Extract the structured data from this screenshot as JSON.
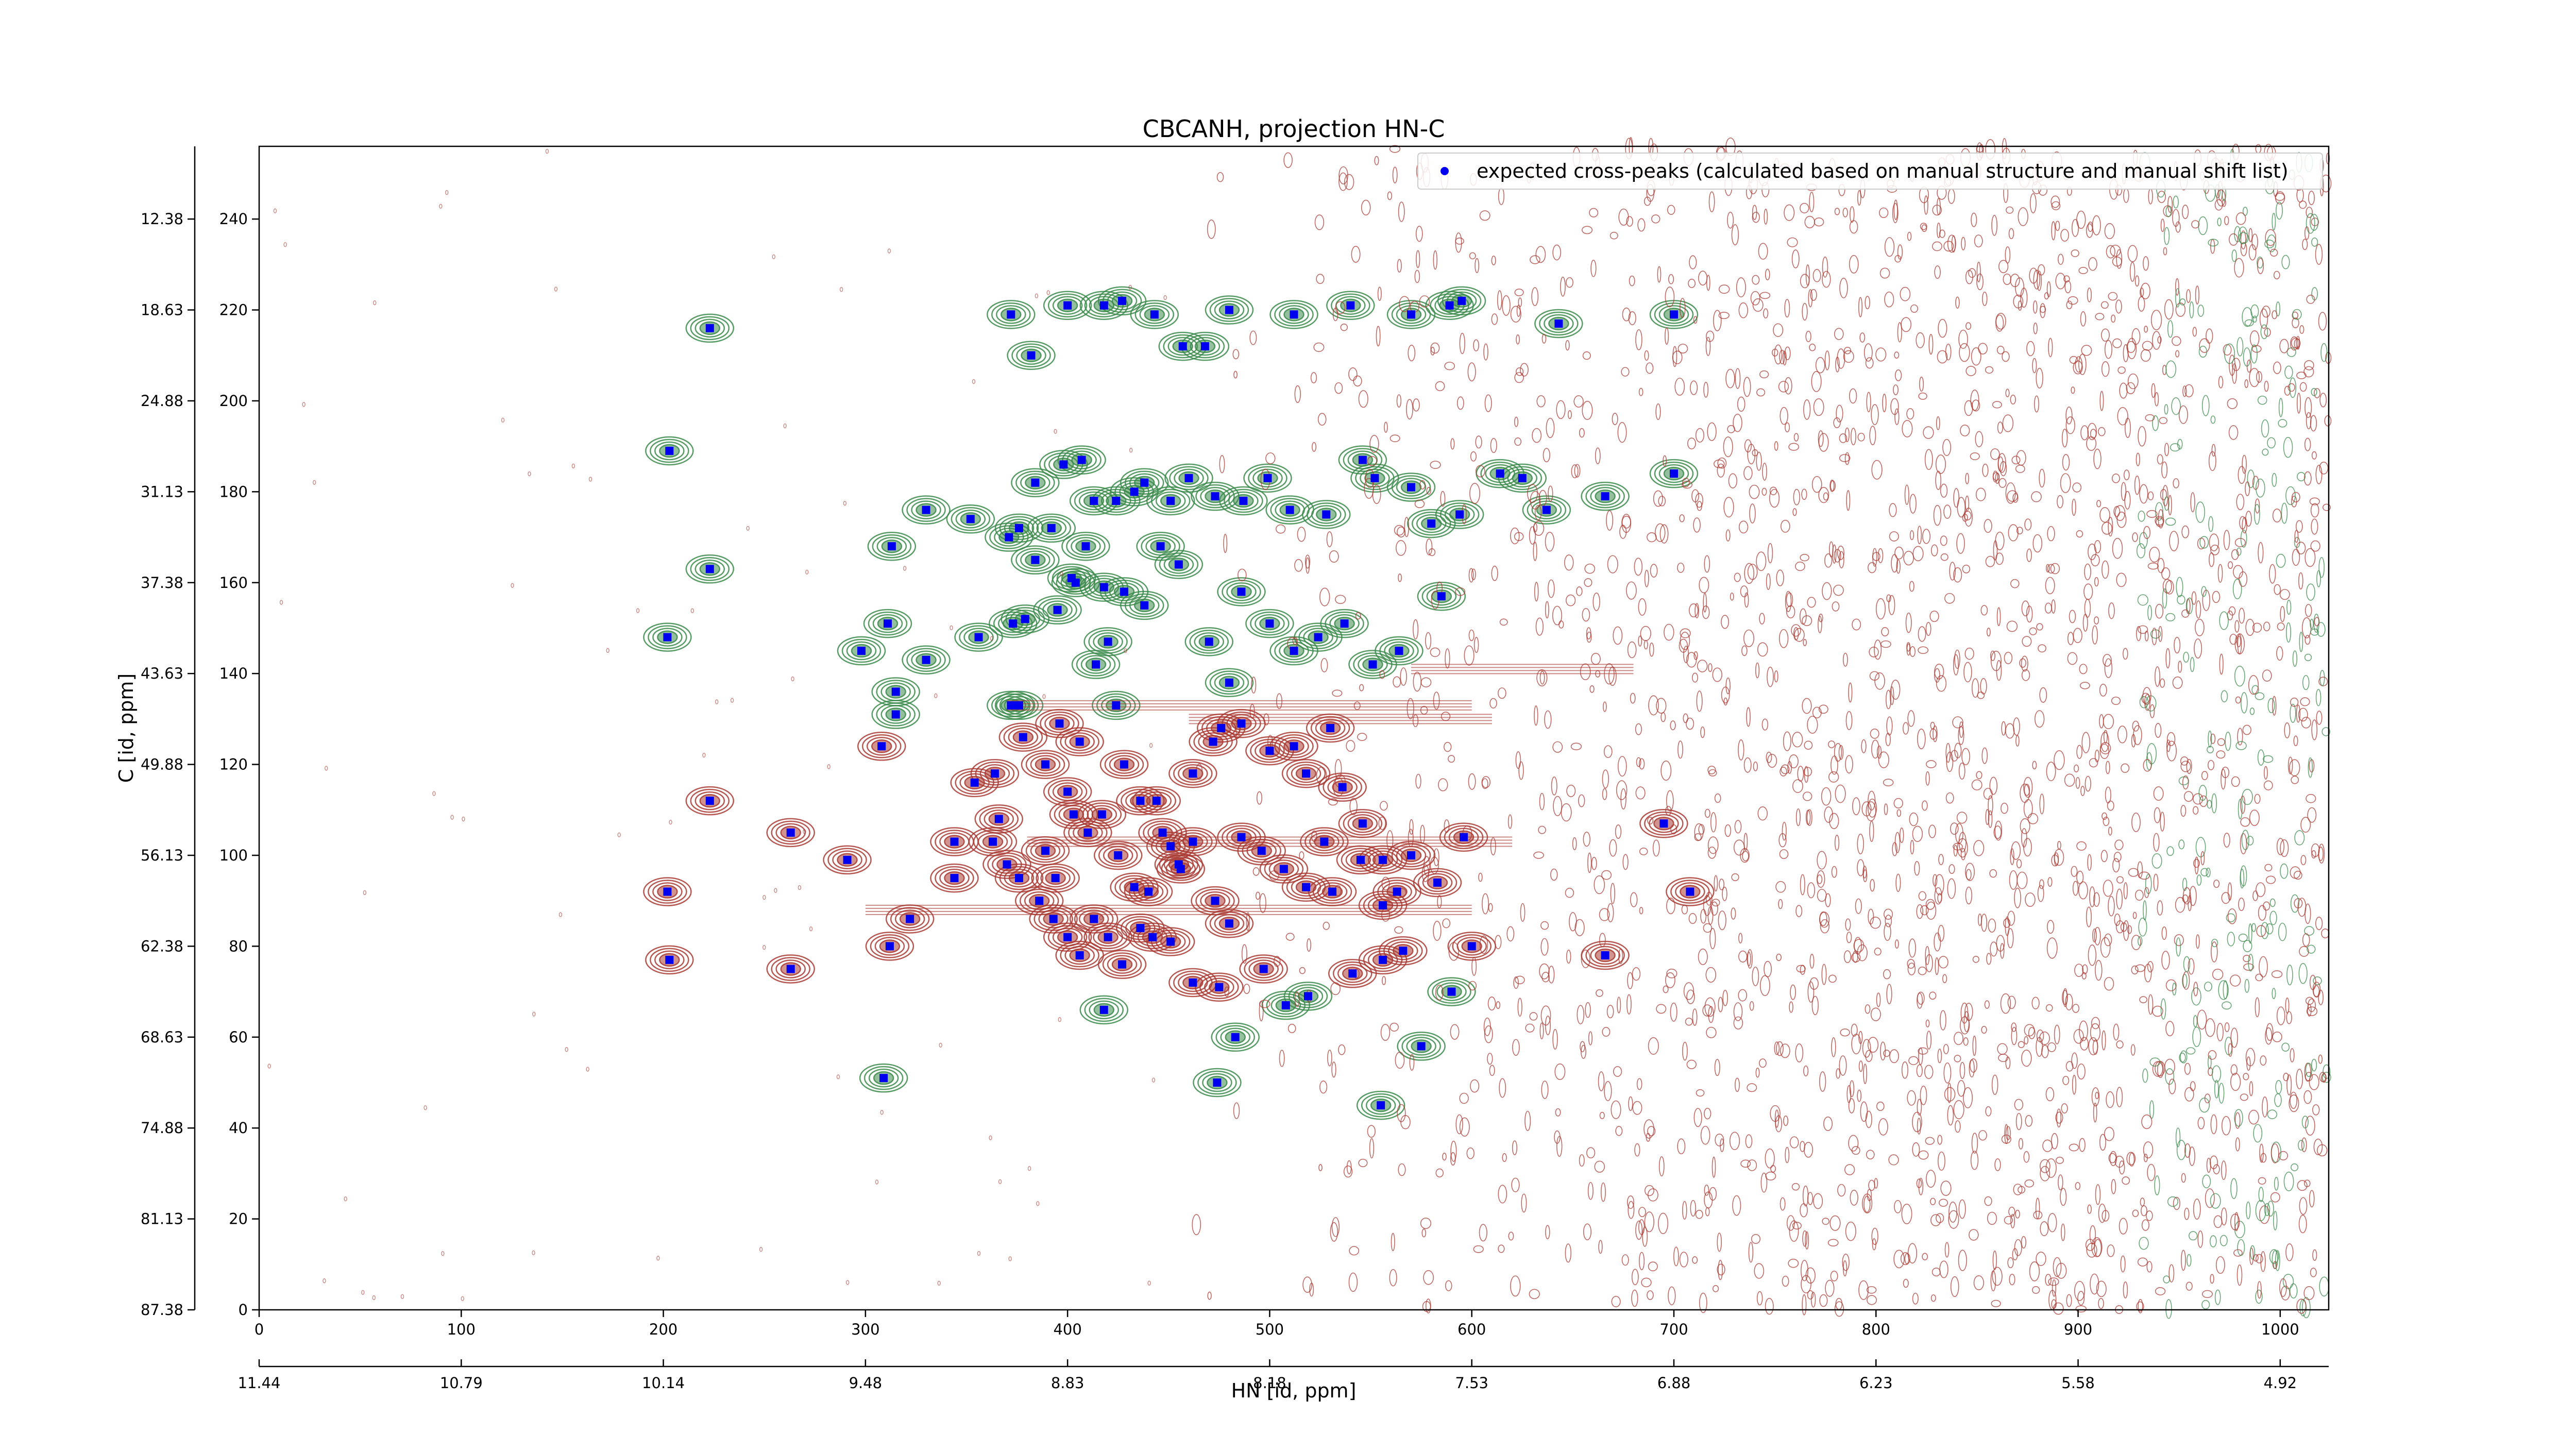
{
  "chart_data": {
    "type": "scatter",
    "title": "CBCANH, projection HN-C",
    "xlabel": "HN [id, ppm]",
    "ylabel": "C [id, ppm]",
    "xlim": [
      0,
      1024
    ],
    "ylim": [
      0,
      256
    ],
    "x_ticks": [
      0,
      100,
      200,
      300,
      400,
      500,
      600,
      700,
      800,
      900,
      1000
    ],
    "y_ticks": [
      0,
      20,
      40,
      60,
      80,
      100,
      120,
      140,
      160,
      180,
      200,
      220,
      240
    ],
    "x_ppm_ticks": [
      "11.44",
      "10.79",
      "10.14",
      "9.48",
      "8.83",
      "8.18",
      "7.53",
      "6.88",
      "6.23",
      "5.58",
      "4.92"
    ],
    "y_ppm_ticks": [
      "87.38",
      "81.13",
      "74.88",
      "68.63",
      "62.38",
      "56.13",
      "49.88",
      "43.63",
      "37.38",
      "31.13",
      "24.88",
      "18.63",
      "12.38"
    ],
    "legend": {
      "label": "expected cross-peaks (calculated based on manual structure and manual shift list)",
      "position": "top-right"
    },
    "colors": {
      "positive_contour": "#3a8a4a",
      "negative_contour": "#a93a32",
      "expected_peak": "#0000ee"
    },
    "series": [
      {
        "name": "expected cross-peaks (calculated based on manual structure and manual shift list)",
        "points": [
          [
            223,
            216
          ],
          [
            203,
            189
          ],
          [
            223,
            163
          ],
          [
            202,
            148
          ],
          [
            223,
            112
          ],
          [
            202,
            92
          ],
          [
            203,
            77
          ],
          [
            263,
            105
          ],
          [
            263,
            75
          ],
          [
            291,
            99
          ],
          [
            309,
            51
          ],
          [
            311,
            151
          ],
          [
            313,
            168
          ],
          [
            315,
            136
          ],
          [
            330,
            176
          ],
          [
            330,
            143
          ],
          [
            344,
            103
          ],
          [
            352,
            174
          ],
          [
            356,
            148
          ],
          [
            364,
            118
          ],
          [
            371,
            170
          ],
          [
            373,
            151
          ],
          [
            376,
            133
          ],
          [
            389,
            120
          ],
          [
            396,
            129
          ],
          [
            404,
            160
          ],
          [
            406,
            125
          ],
          [
            414,
            142
          ],
          [
            418,
            159
          ],
          [
            424,
            133
          ],
          [
            428,
            120
          ],
          [
            436,
            112
          ],
          [
            444,
            112
          ],
          [
            451,
            102
          ],
          [
            456,
            97
          ],
          [
            462,
            118
          ],
          [
            472,
            125
          ],
          [
            476,
            128
          ],
          [
            480,
            138
          ],
          [
            486,
            129
          ],
          [
            500,
            123
          ],
          [
            512,
            124
          ],
          [
            518,
            118
          ],
          [
            527,
            103
          ],
          [
            530,
            128
          ],
          [
            536,
            115
          ],
          [
            546,
            107
          ],
          [
            556,
            99
          ],
          [
            563,
            92
          ],
          [
            570,
            100
          ],
          [
            583,
            94
          ],
          [
            596,
            104
          ],
          [
            372,
            219
          ],
          [
            382,
            210
          ],
          [
            400,
            221
          ],
          [
            418,
            221
          ],
          [
            427,
            222
          ],
          [
            443,
            219
          ],
          [
            457,
            212
          ],
          [
            468,
            212
          ],
          [
            480,
            220
          ],
          [
            512,
            219
          ],
          [
            540,
            221
          ],
          [
            570,
            219
          ],
          [
            589,
            221
          ],
          [
            595,
            222
          ],
          [
            643,
            217
          ],
          [
            700,
            219
          ],
          [
            376,
            172
          ],
          [
            384,
            182
          ],
          [
            392,
            172
          ],
          [
            398,
            186
          ],
          [
            407,
            187
          ],
          [
            413,
            178
          ],
          [
            424,
            178
          ],
          [
            433,
            180
          ],
          [
            438,
            182
          ],
          [
            446,
            168
          ],
          [
            451,
            178
          ],
          [
            460,
            183
          ],
          [
            473,
            179
          ],
          [
            487,
            178
          ],
          [
            499,
            183
          ],
          [
            510,
            176
          ],
          [
            528,
            175
          ],
          [
            546,
            187
          ],
          [
            552,
            183
          ],
          [
            570,
            181
          ],
          [
            580,
            173
          ],
          [
            594,
            175
          ],
          [
            614,
            184
          ],
          [
            625,
            183
          ],
          [
            637,
            176
          ],
          [
            666,
            179
          ],
          [
            700,
            184
          ],
          [
            379,
            152
          ],
          [
            384,
            165
          ],
          [
            395,
            154
          ],
          [
            402,
            161
          ],
          [
            409,
            168
          ],
          [
            420,
            147
          ],
          [
            428,
            158
          ],
          [
            438,
            155
          ],
          [
            455,
            164
          ],
          [
            470,
            147
          ],
          [
            486,
            158
          ],
          [
            500,
            151
          ],
          [
            512,
            145
          ],
          [
            524,
            148
          ],
          [
            537,
            151
          ],
          [
            551,
            142
          ],
          [
            564,
            145
          ],
          [
            585,
            157
          ],
          [
            298,
            145
          ],
          [
            308,
            124
          ],
          [
            315,
            131
          ],
          [
            354,
            116
          ],
          [
            366,
            108
          ],
          [
            372,
            133
          ],
          [
            378,
            126
          ],
          [
            389,
            101
          ],
          [
            394,
            95
          ],
          [
            400,
            114
          ],
          [
            403,
            109
          ],
          [
            410,
            105
          ],
          [
            417,
            109
          ],
          [
            425,
            100
          ],
          [
            433,
            93
          ],
          [
            440,
            92
          ],
          [
            447,
            105
          ],
          [
            455,
            98
          ],
          [
            462,
            103
          ],
          [
            473,
            90
          ],
          [
            480,
            85
          ],
          [
            486,
            104
          ],
          [
            496,
            101
          ],
          [
            507,
            97
          ],
          [
            518,
            93
          ],
          [
            531,
            92
          ],
          [
            545,
            99
          ],
          [
            556,
            89
          ],
          [
            363,
            103
          ],
          [
            370,
            98
          ],
          [
            376,
            95
          ],
          [
            386,
            90
          ],
          [
            393,
            86
          ],
          [
            400,
            82
          ],
          [
            406,
            78
          ],
          [
            413,
            86
          ],
          [
            420,
            82
          ],
          [
            427,
            76
          ],
          [
            436,
            84
          ],
          [
            442,
            82
          ],
          [
            451,
            81
          ],
          [
            462,
            72
          ],
          [
            475,
            71
          ],
          [
            483,
            60
          ],
          [
            497,
            75
          ],
          [
            508,
            67
          ],
          [
            519,
            69
          ],
          [
            541,
            74
          ],
          [
            556,
            77
          ],
          [
            566,
            79
          ],
          [
            575,
            58
          ],
          [
            590,
            70
          ],
          [
            600,
            80
          ],
          [
            666,
            78
          ],
          [
            695,
            107
          ],
          [
            708,
            92
          ],
          [
            555,
            45
          ],
          [
            474,
            50
          ],
          [
            418,
            66
          ],
          [
            344,
            95
          ],
          [
            322,
            86
          ],
          [
            312,
            80
          ]
        ]
      }
    ]
  }
}
